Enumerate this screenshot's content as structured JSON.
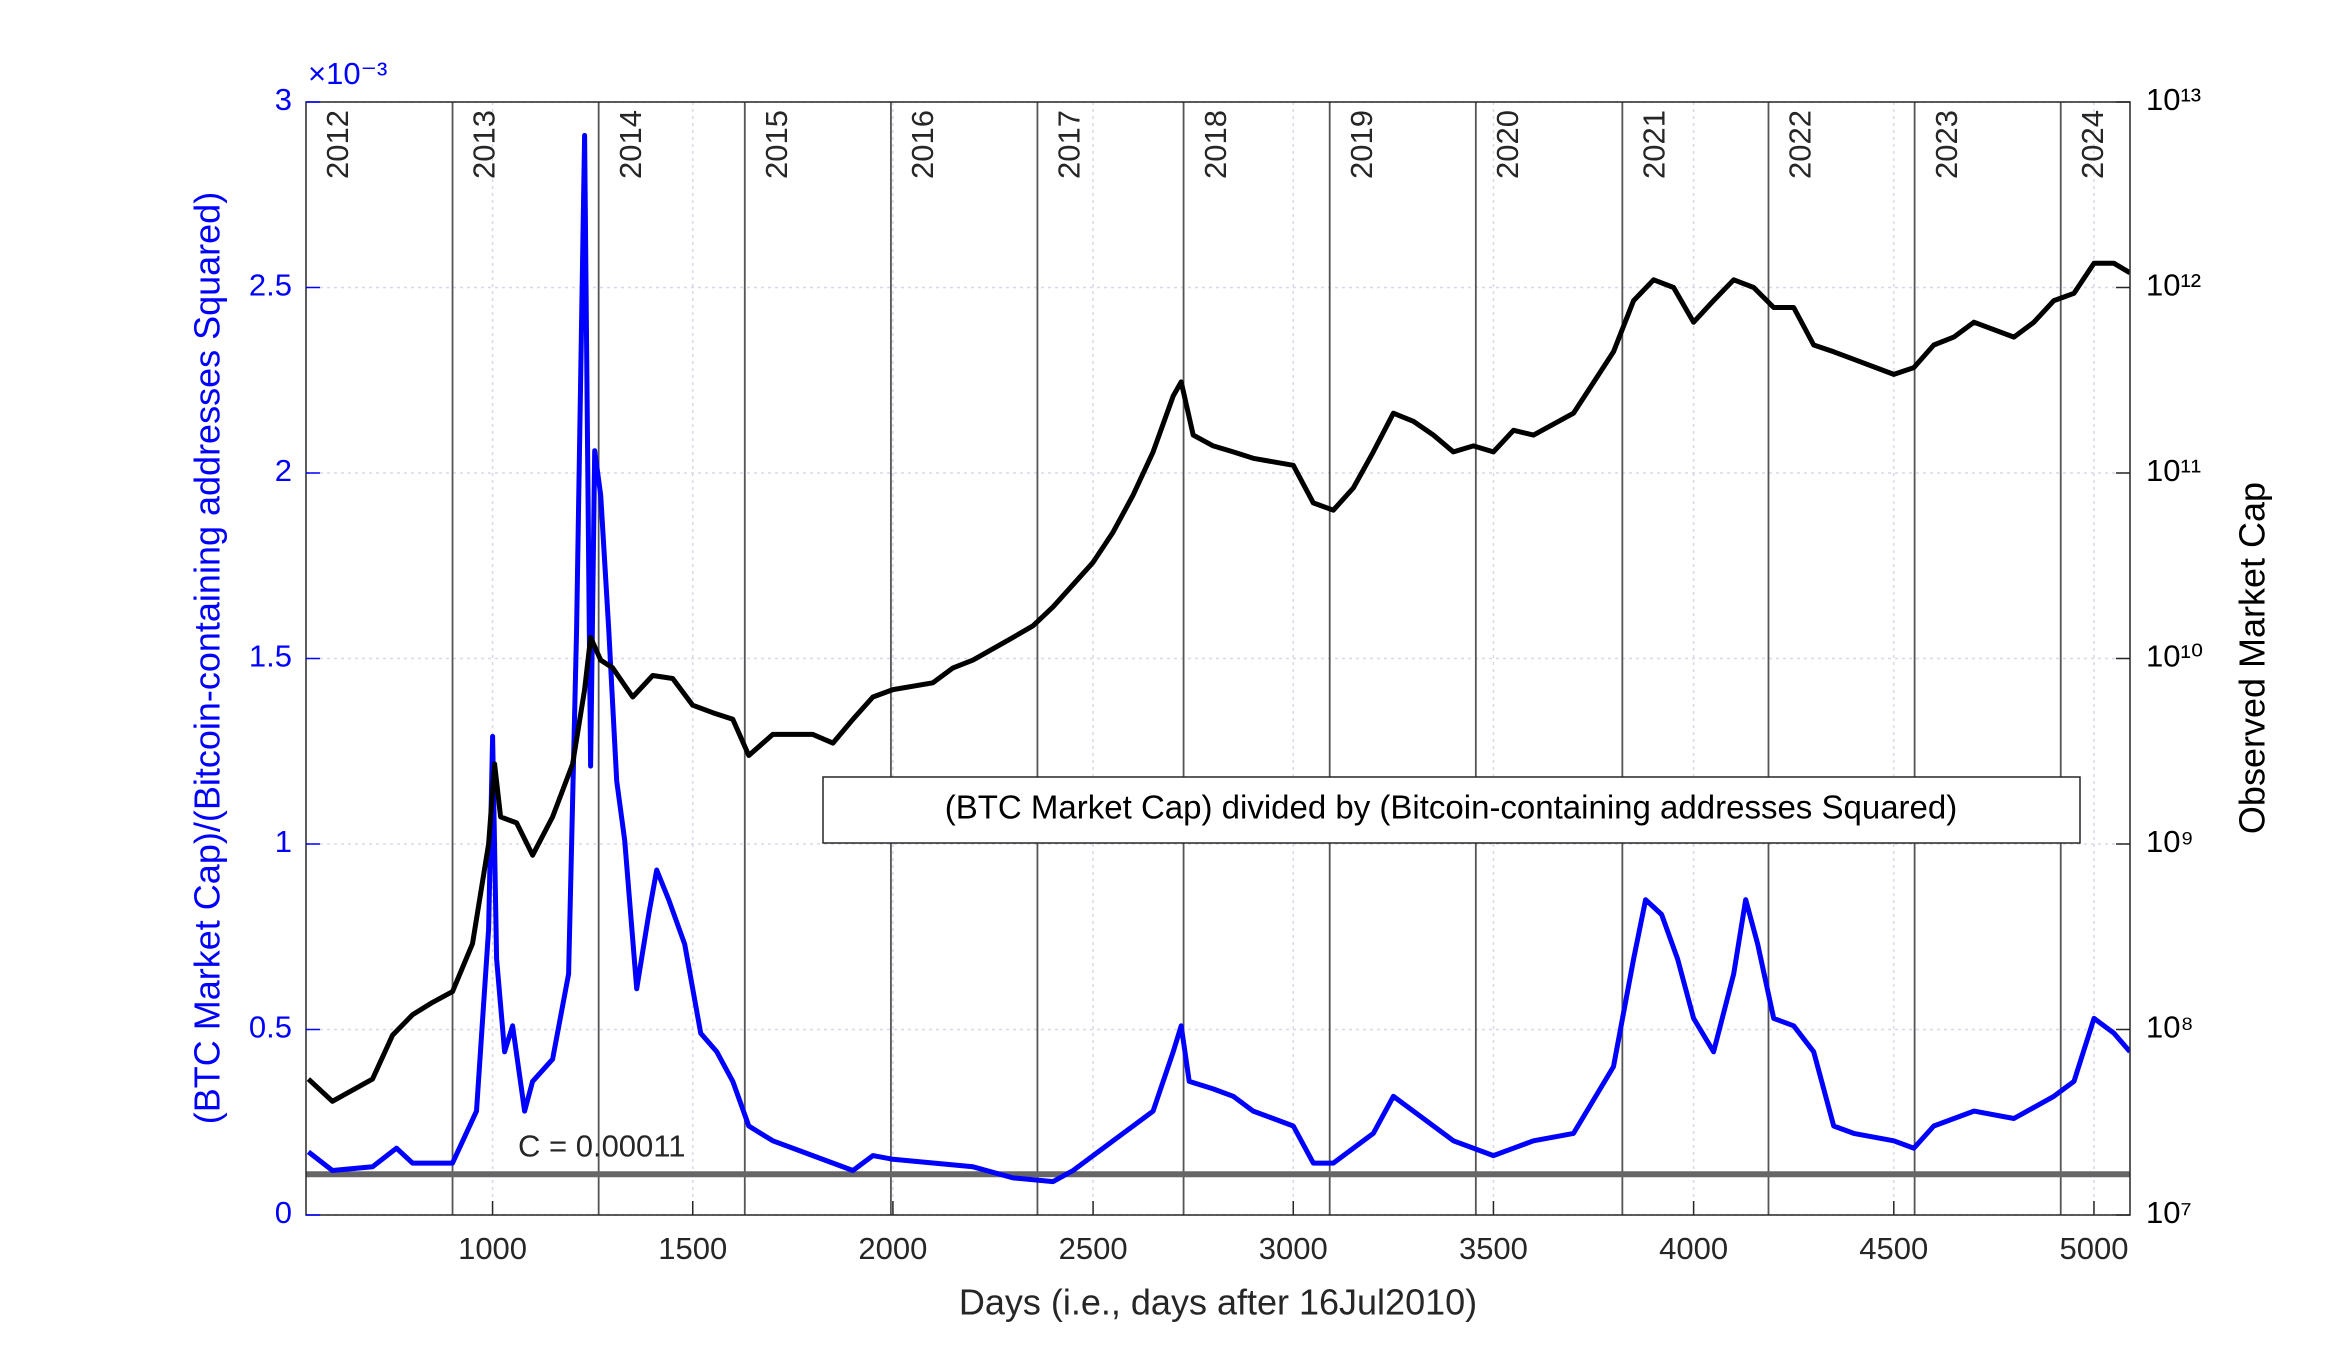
{
  "chart_data": {
    "type": "line",
    "xlabel": "Days (i.e., days after 16Jul2010)",
    "ylabel": "(BTC Market Cap)/(Bitcoin-containing addresses Squared)",
    "y2label": "Observed Market Cap",
    "y_multiplier": "×10⁻³",
    "xlim": [
      534,
      5090
    ],
    "xticks": [
      1000,
      1500,
      2000,
      2500,
      3000,
      3500,
      4000,
      4500,
      5000
    ],
    "ylim": [
      0,
      3
    ],
    "yticks": [
      0,
      0.5,
      1,
      1.5,
      2,
      2.5,
      3
    ],
    "y2lim": [
      10000000,
      10000000000000
    ],
    "y2log": true,
    "y2ticks": [
      {
        "value": 10000000,
        "label": "10⁷"
      },
      {
        "value": 100000000,
        "label": "10⁸"
      },
      {
        "value": 1000000000,
        "label": "10⁹"
      },
      {
        "value": 10000000000,
        "label": "10¹⁰"
      },
      {
        "value": 100000000000,
        "label": "10¹¹"
      },
      {
        "value": 1000000000000,
        "label": "10¹²"
      },
      {
        "value": 10000000000000,
        "label": "10¹³"
      }
    ],
    "grid": true,
    "year_lines": {
      "labels": [
        "2012",
        "2013",
        "2014",
        "2015",
        "2016",
        "2017",
        "2018",
        "2019",
        "2020",
        "2021",
        "2022",
        "2023",
        "2024"
      ],
      "days": [
        534,
        900,
        1265,
        1630,
        1995,
        2361,
        2726,
        3091,
        3456,
        3822,
        4187,
        4552,
        4917
      ]
    },
    "c_line": {
      "value": 0.11,
      "label": "C = 0.00011",
      "color": "#666666"
    },
    "series": [
      {
        "name": "(BTC Market Cap) divided by (Bitcoin-containing addresses Squared)",
        "color": "#0000ff",
        "axis": "y",
        "x": [
          540,
          600,
          700,
          760,
          800,
          900,
          960,
          990,
          1000,
          1010,
          1030,
          1050,
          1080,
          1100,
          1150,
          1190,
          1210,
          1230,
          1245,
          1255,
          1270,
          1290,
          1310,
          1330,
          1360,
          1390,
          1410,
          1440,
          1480,
          1520,
          1560,
          1600,
          1640,
          1700,
          1800,
          1900,
          1950,
          2000,
          2200,
          2300,
          2400,
          2450,
          2500,
          2550,
          2600,
          2650,
          2700,
          2720,
          2740,
          2800,
          2850,
          2900,
          3000,
          3050,
          3100,
          3150,
          3200,
          3250,
          3300,
          3400,
          3500,
          3550,
          3600,
          3700,
          3800,
          3850,
          3880,
          3920,
          3960,
          4000,
          4050,
          4100,
          4130,
          4160,
          4200,
          4250,
          4300,
          4350,
          4400,
          4500,
          4550,
          4600,
          4700,
          4800,
          4900,
          4950,
          5000,
          5050,
          5090
        ],
        "values": [
          0.17,
          0.12,
          0.13,
          0.18,
          0.14,
          0.14,
          0.28,
          0.77,
          1.29,
          0.69,
          0.44,
          0.51,
          0.28,
          0.36,
          0.42,
          0.65,
          1.58,
          2.91,
          1.21,
          2.06,
          1.94,
          1.58,
          1.17,
          1.01,
          0.61,
          0.81,
          0.93,
          0.85,
          0.73,
          0.49,
          0.44,
          0.36,
          0.24,
          0.2,
          0.16,
          0.12,
          0.16,
          0.15,
          0.13,
          0.1,
          0.09,
          0.12,
          0.16,
          0.2,
          0.24,
          0.28,
          0.44,
          0.51,
          0.36,
          0.34,
          0.32,
          0.28,
          0.24,
          0.14,
          0.14,
          0.18,
          0.22,
          0.32,
          0.28,
          0.2,
          0.16,
          0.18,
          0.2,
          0.22,
          0.4,
          0.69,
          0.85,
          0.81,
          0.69,
          0.53,
          0.44,
          0.65,
          0.85,
          0.73,
          0.53,
          0.51,
          0.44,
          0.24,
          0.22,
          0.2,
          0.18,
          0.24,
          0.28,
          0.26,
          0.32,
          0.36,
          0.53,
          0.49,
          0.44
        ]
      },
      {
        "color": "#000000",
        "axis": "y2",
        "x": [
          540,
          600,
          700,
          750,
          800,
          850,
          900,
          950,
          990,
          1005,
          1020,
          1060,
          1100,
          1150,
          1200,
          1230,
          1245,
          1270,
          1300,
          1350,
          1400,
          1450,
          1500,
          1550,
          1600,
          1640,
          1700,
          1800,
          1850,
          1900,
          1950,
          2000,
          2100,
          2150,
          2200,
          2300,
          2350,
          2400,
          2500,
          2550,
          2600,
          2650,
          2700,
          2720,
          2750,
          2800,
          2850,
          2900,
          3000,
          3050,
          3100,
          3150,
          3200,
          3250,
          3300,
          3350,
          3400,
          3450,
          3500,
          3550,
          3600,
          3700,
          3800,
          3850,
          3900,
          3950,
          4000,
          4050,
          4100,
          4150,
          4200,
          4250,
          4300,
          4350,
          4400,
          4500,
          4550,
          4600,
          4650,
          4700,
          4800,
          4850,
          4900,
          4950,
          5000,
          5050,
          5090
        ],
        "values": [
          54000000.0,
          41000000.0,
          54000000.0,
          93000000.0,
          120000000.0,
          140000000.0,
          160000000.0,
          290000000.0,
          1000000000.0,
          2700000000.0,
          1400000000.0,
          1300000000.0,
          870000000.0,
          1400000000.0,
          2700000000.0,
          6800000000.0,
          13000000000.0,
          9800000000.0,
          8900000000.0,
          6200000000.0,
          8100000000.0,
          7800000000.0,
          5600000000.0,
          5100000000.0,
          4700000000.0,
          3000000000.0,
          3900000000.0,
          3900000000.0,
          3500000000.0,
          4700000000.0,
          6200000000.0,
          6800000000.0,
          7400000000.0,
          8900000000.0,
          9800000000.0,
          13000000000.0,
          15000000000.0,
          19000000000.0,
          33000000000.0,
          48000000000.0,
          76000000000.0,
          130000000000.0,
          260000000000.0,
          310000000000.0,
          160000000000.0,
          140000000000.0,
          130000000000.0,
          120000000000.0,
          110000000000.0,
          69000000000.0,
          63000000000.0,
          83000000000.0,
          130000000000.0,
          210000000000.0,
          190000000000.0,
          160000000000.0,
          130000000000.0,
          140000000000.0,
          130000000000.0,
          170000000000.0,
          160000000000.0,
          210000000000.0,
          450000000000.0,
          850000000000.0,
          1100000000000.0,
          1000000000000.0,
          650000000000.0,
          850000000000.0,
          1100000000000.0,
          1000000000000.0,
          780000000000.0,
          780000000000.0,
          490000000000.0,
          450000000000.0,
          410000000000.0,
          340000000000.0,
          370000000000.0,
          490000000000.0,
          540000000000.0,
          650000000000.0,
          540000000000.0,
          650000000000.0,
          850000000000.0,
          930000000000.0,
          1350000000000.0,
          1350000000000.0,
          1200000000000.0
        ]
      }
    ]
  }
}
